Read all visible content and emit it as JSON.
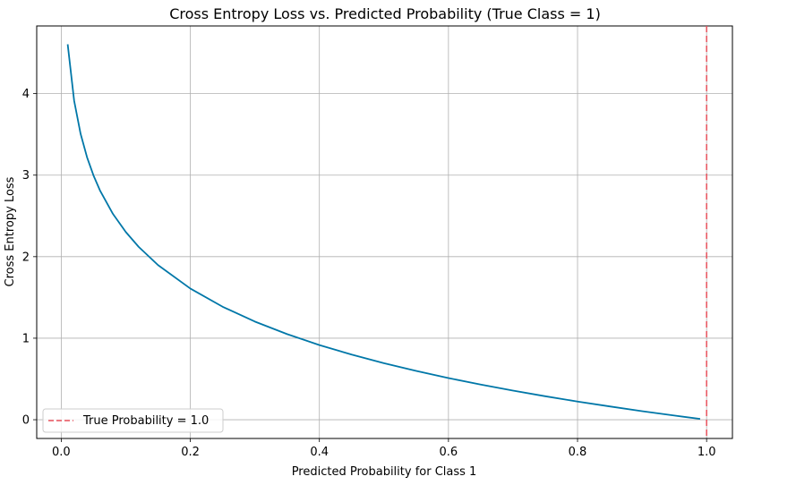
{
  "chart_data": {
    "type": "line",
    "title": "Cross Entropy Loss vs. Predicted Probability (True Class = 1)",
    "xlabel": "Predicted Probability for Class 1",
    "ylabel": "Cross Entropy Loss",
    "xlim": [
      -0.038,
      1.04
    ],
    "ylim": [
      -0.23,
      4.83
    ],
    "xticks": [
      0.0,
      0.2,
      0.4,
      0.6,
      0.8,
      1.0
    ],
    "xtick_labels": [
      "0.0",
      "0.2",
      "0.4",
      "0.6",
      "0.8",
      "1.0"
    ],
    "yticks": [
      0,
      1,
      2,
      3,
      4
    ],
    "ytick_labels": [
      "0",
      "1",
      "2",
      "3",
      "4"
    ],
    "grid": true,
    "legend_position": "lower-left",
    "series": [
      {
        "curve": "-ln(p)",
        "color": "#0077a8",
        "x": [
          0.01,
          0.02,
          0.03,
          0.04,
          0.05,
          0.06,
          0.08,
          0.1,
          0.12,
          0.15,
          0.2,
          0.25,
          0.3,
          0.35,
          0.4,
          0.45,
          0.5,
          0.55,
          0.6,
          0.65,
          0.7,
          0.75,
          0.8,
          0.85,
          0.9,
          0.95,
          0.99
        ],
        "y": [
          4.605,
          3.912,
          3.507,
          3.219,
          2.996,
          2.813,
          2.526,
          2.303,
          2.12,
          1.897,
          1.609,
          1.386,
          1.204,
          1.05,
          0.916,
          0.799,
          0.693,
          0.598,
          0.511,
          0.431,
          0.357,
          0.288,
          0.223,
          0.163,
          0.105,
          0.051,
          0.01
        ]
      }
    ],
    "reference_lines": [
      {
        "orientation": "vertical",
        "x": 1.0,
        "style": "dashed",
        "color": "#e8505b",
        "legend_label": "True Probability = 1.0"
      }
    ]
  }
}
